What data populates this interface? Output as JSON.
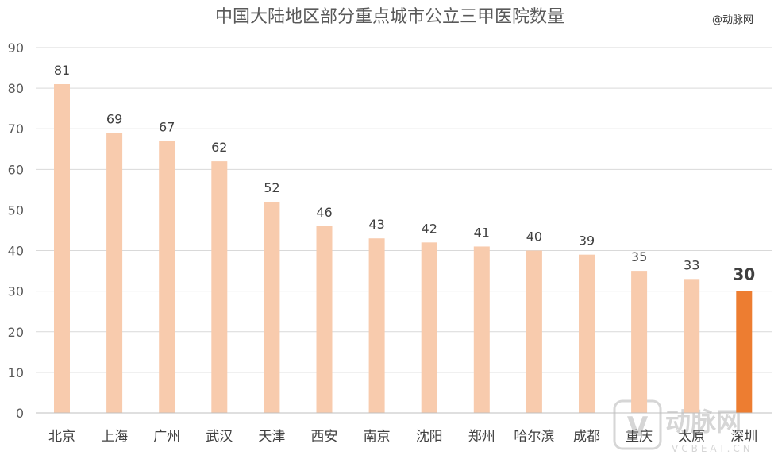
{
  "chart_data": {
    "type": "bar",
    "title": "中国大陆地区部分重点城市公立三甲医院数量",
    "source_label": "@动脉网",
    "watermark": {
      "brand": "动脉网",
      "latin": "VCBEAT.CN"
    },
    "categories": [
      "北京",
      "上海",
      "广州",
      "武汉",
      "天津",
      "西安",
      "南京",
      "沈阳",
      "郑州",
      "哈尔滨",
      "成都",
      "重庆",
      "太原",
      "深圳"
    ],
    "values": [
      81,
      69,
      67,
      62,
      52,
      46,
      43,
      42,
      41,
      40,
      39,
      35,
      33,
      30
    ],
    "highlight_category": "深圳",
    "ylim": [
      0,
      90
    ],
    "yticks": [
      0,
      10,
      20,
      30,
      40,
      50,
      60,
      70,
      80,
      90
    ],
    "grid": true,
    "legend": "none",
    "colors": {
      "bar": "#f8cbad",
      "highlight": "#ed7d31"
    }
  }
}
